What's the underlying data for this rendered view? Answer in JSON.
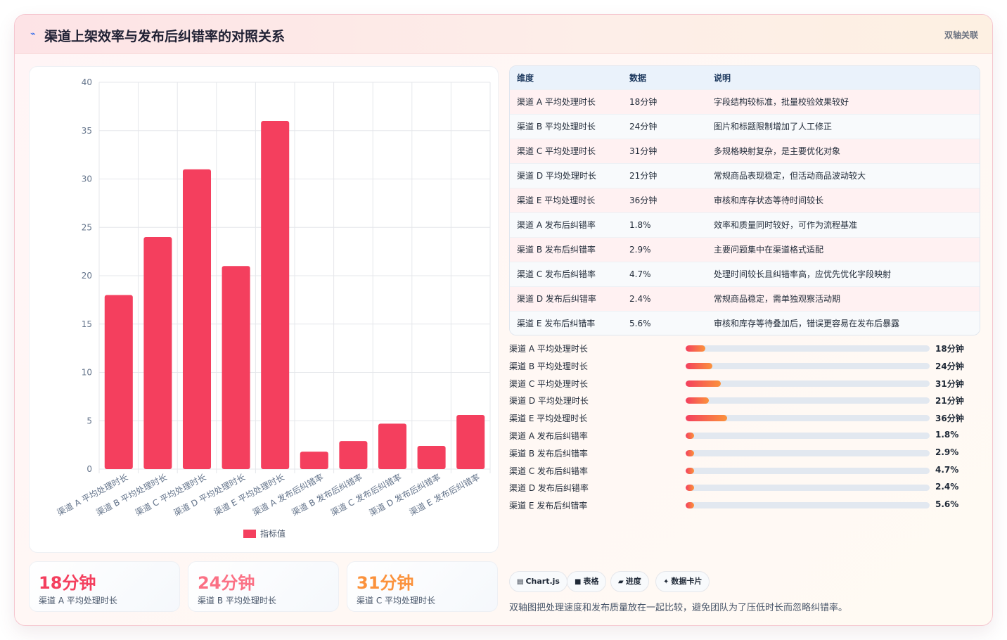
{
  "header": {
    "icon": "trend-icon",
    "title": "渠道上架效率与发布后纠错率的对照关系",
    "tag": "双轴关联"
  },
  "chart_data": {
    "type": "bar",
    "categories": [
      "渠道 A 平均处理时长",
      "渠道 B 平均处理时长",
      "渠道 C 平均处理时长",
      "渠道 D 平均处理时长",
      "渠道 E 平均处理时长",
      "渠道 A 发布后纠错率",
      "渠道 B 发布后纠错率",
      "渠道 C 发布后纠错率",
      "渠道 D 发布后纠错率",
      "渠道 E 发布后纠错率"
    ],
    "series": [
      {
        "name": "指标值",
        "values": [
          18,
          24,
          31,
          21,
          36,
          1.8,
          2.9,
          4.7,
          2.4,
          5.6
        ],
        "color": "#f43f5e"
      }
    ],
    "ylim": [
      0,
      40
    ],
    "yticks": [
      0,
      5,
      10,
      15,
      20,
      25,
      30,
      35,
      40
    ],
    "grid": true,
    "legend": "bottom"
  },
  "table": {
    "headers": [
      "维度",
      "数据",
      "说明"
    ],
    "rows": [
      [
        "渠道 A 平均处理时长",
        "18分钟",
        "字段结构较标准，批量校验效果较好"
      ],
      [
        "渠道 B 平均处理时长",
        "24分钟",
        "图片和标题限制增加了人工修正"
      ],
      [
        "渠道 C 平均处理时长",
        "31分钟",
        "多规格映射复杂，是主要优化对象"
      ],
      [
        "渠道 D 平均处理时长",
        "21分钟",
        "常规商品表现稳定，但活动商品波动较大"
      ],
      [
        "渠道 E 平均处理时长",
        "36分钟",
        "审核和库存状态等待时间较长"
      ],
      [
        "渠道 A 发布后纠错率",
        "1.8%",
        "效率和质量同时较好，可作为流程基准"
      ],
      [
        "渠道 B 发布后纠错率",
        "2.9%",
        "主要问题集中在渠道格式适配"
      ],
      [
        "渠道 C 发布后纠错率",
        "4.7%",
        "处理时间较长且纠错率高，应优先优化字段映射"
      ],
      [
        "渠道 D 发布后纠错率",
        "2.4%",
        "常规商品稳定，需单独观察活动期"
      ],
      [
        "渠道 E 发布后纠错率",
        "5.6%",
        "审核和库存等待叠加后，错误更容易在发布后暴露"
      ]
    ]
  },
  "progress": [
    {
      "label": "渠道 A 平均处理时长",
      "value": "18分钟",
      "fraction": 0.08
    },
    {
      "label": "渠道 B 平均处理时长",
      "value": "24分钟",
      "fraction": 0.11
    },
    {
      "label": "渠道 C 平均处理时长",
      "value": "31分钟",
      "fraction": 0.145
    },
    {
      "label": "渠道 D 平均处理时长",
      "value": "21分钟",
      "fraction": 0.095
    },
    {
      "label": "渠道 E 平均处理时长",
      "value": "36分钟",
      "fraction": 0.17
    },
    {
      "label": "渠道 A 发布后纠错率",
      "value": "1.8%",
      "fraction": 0.035
    },
    {
      "label": "渠道 B 发布后纠错率",
      "value": "2.9%",
      "fraction": 0.035
    },
    {
      "label": "渠道 C 发布后纠错率",
      "value": "4.7%",
      "fraction": 0.035
    },
    {
      "label": "渠道 D 发布后纠错率",
      "value": "2.4%",
      "fraction": 0.035
    },
    {
      "label": "渠道 E 发布后纠错率",
      "value": "5.6%",
      "fraction": 0.035
    }
  ],
  "stats": [
    {
      "value": "18分钟",
      "label": "渠道 A 平均处理时长",
      "color": "#f43f5e"
    },
    {
      "value": "24分钟",
      "label": "渠道 B 平均处理时长",
      "color": "#fb7185"
    },
    {
      "value": "31分钟",
      "label": "渠道 C 平均处理时长",
      "color": "#fb923c"
    }
  ],
  "chips": [
    {
      "icon": "chart-icon",
      "glyph": "▤",
      "label": "Chart.js"
    },
    {
      "icon": "table-icon",
      "glyph": "■",
      "label": "表格"
    },
    {
      "icon": "progress-icon",
      "glyph": "▰",
      "label": "进度"
    },
    {
      "icon": "sparkle-icon",
      "glyph": "✦",
      "label": "数据卡片"
    }
  ],
  "footnote": "双轴图把处理速度和发布质量放在一起比较，避免团队为了压低时长而忽略纠错率。"
}
